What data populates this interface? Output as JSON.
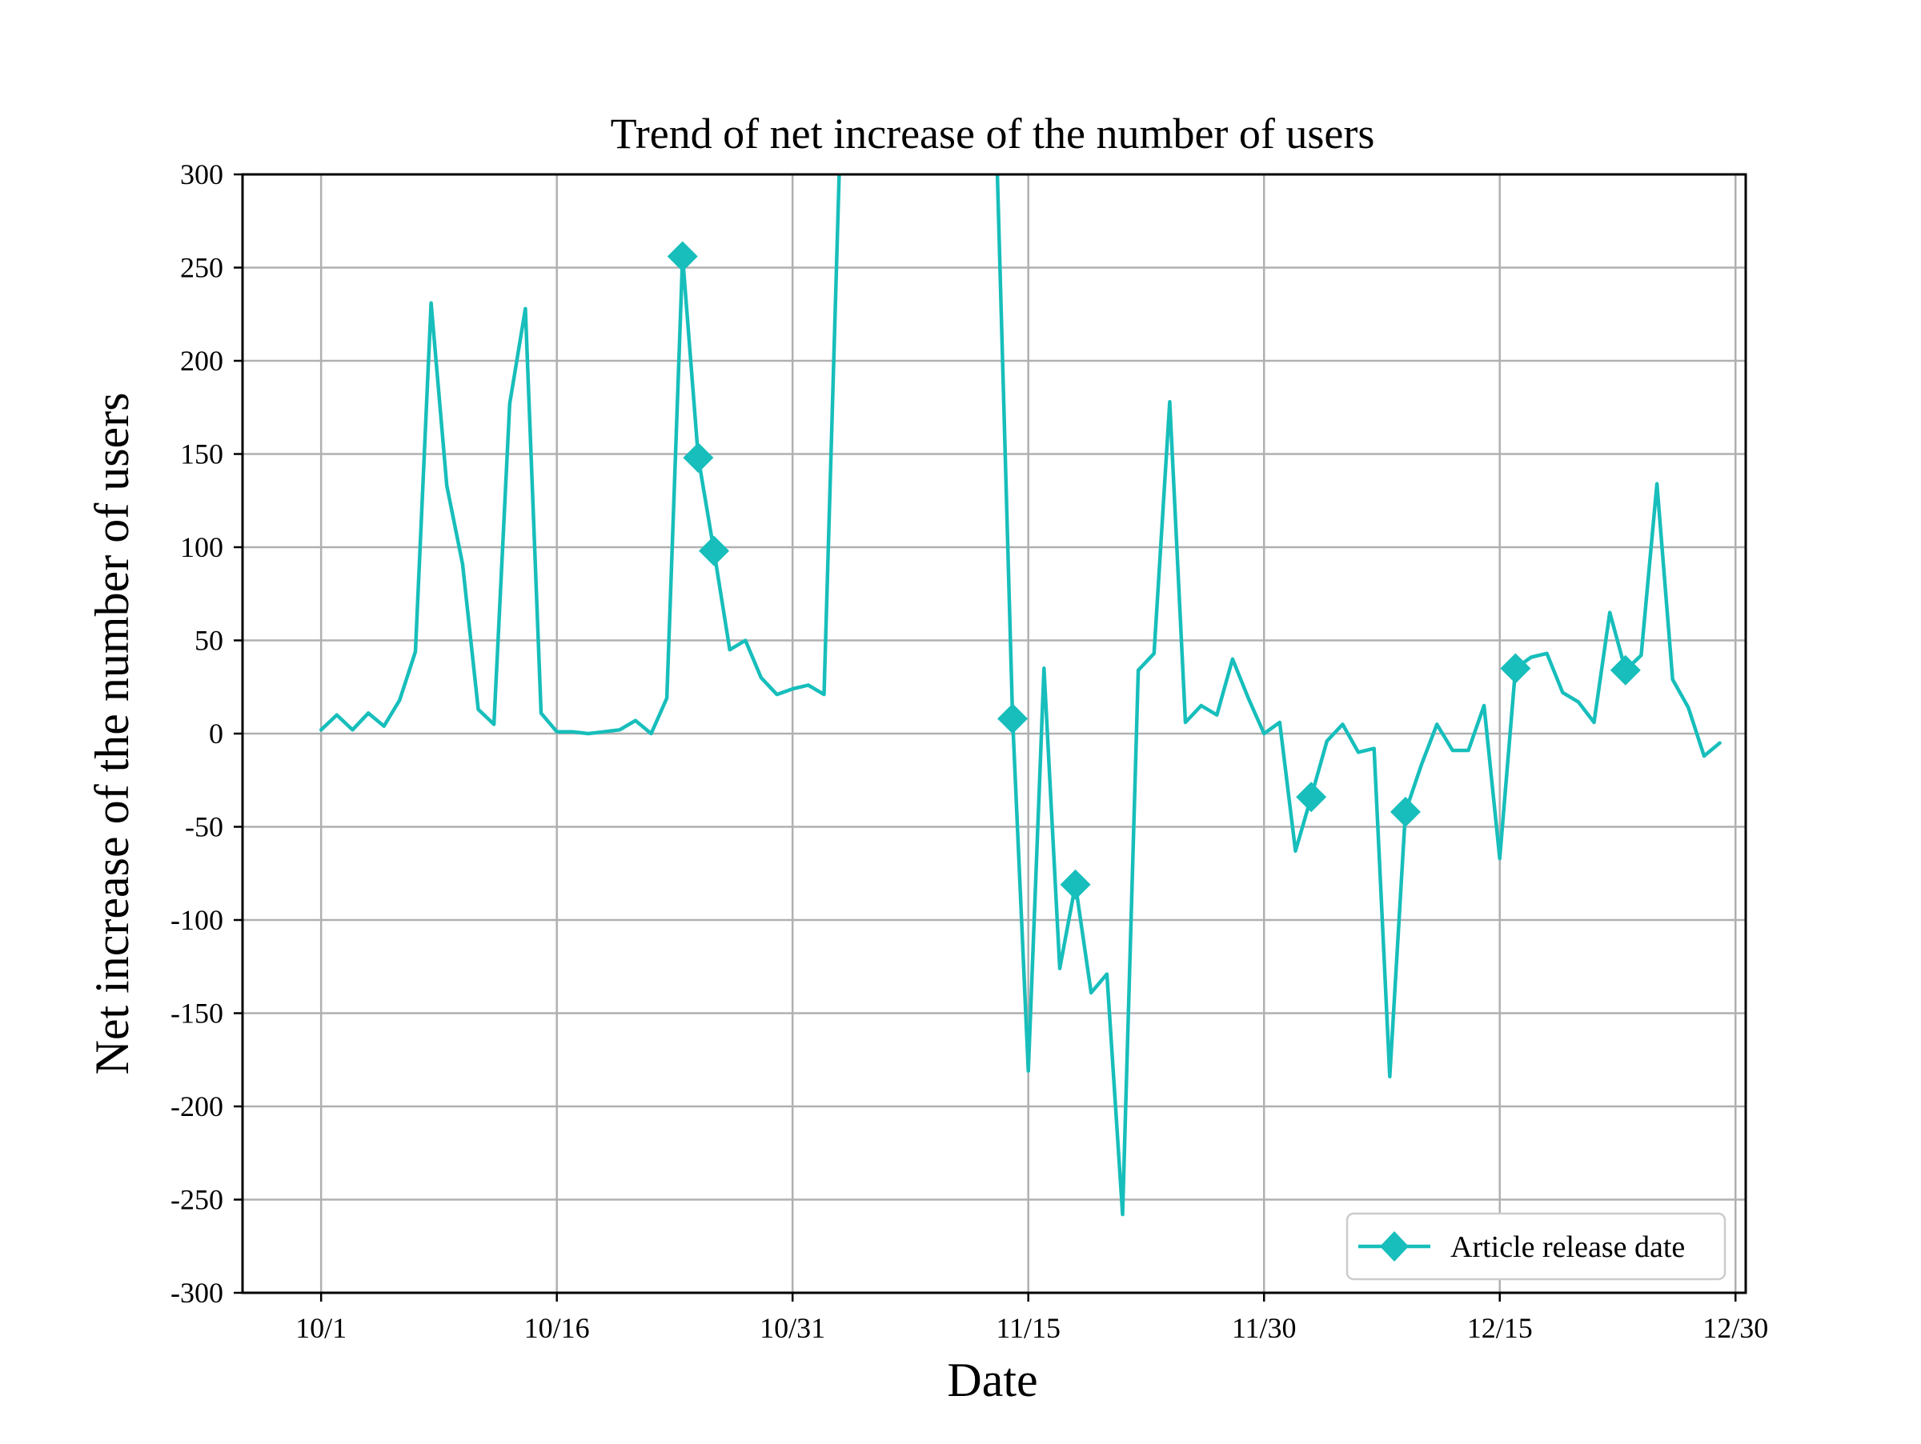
{
  "chart_data": {
    "type": "line",
    "title": "Trend of net increase of the number of users",
    "xlabel": "Date",
    "ylabel": "Net increase of the number of users",
    "ylim": [
      -300,
      300
    ],
    "xlim": [
      "9/26",
      "12/30"
    ],
    "grid": true,
    "legend_position": "lower-right",
    "x_ticks": [
      "10/1",
      "10/16",
      "10/31",
      "11/15",
      "11/30",
      "12/15",
      "12/30"
    ],
    "y_ticks": [
      300,
      250,
      200,
      150,
      100,
      50,
      0,
      -50,
      -100,
      -150,
      -200,
      -250,
      -300
    ],
    "colors": {
      "series": "#17bebb",
      "grid": "#b0b0b0",
      "axis": "#000000"
    },
    "series": [
      {
        "name": "Article release date",
        "marker": "diamond",
        "x": [
          "10/1",
          "10/2",
          "10/3",
          "10/4",
          "10/5",
          "10/6",
          "10/7",
          "10/8",
          "10/9",
          "10/10",
          "10/11",
          "10/12",
          "10/13",
          "10/14",
          "10/15",
          "10/16",
          "10/17",
          "10/18",
          "10/19",
          "10/20",
          "10/21",
          "10/22",
          "10/23",
          "10/24",
          "10/25",
          "10/26",
          "10/27",
          "10/28",
          "10/29",
          "10/30",
          "10/31",
          "11/1",
          "11/2",
          "11/3",
          "11/4",
          "11/5",
          "11/6",
          "11/7",
          "11/8",
          "11/9",
          "11/10",
          "11/11",
          "11/12",
          "11/13",
          "11/14",
          "11/15",
          "11/16",
          "11/17",
          "11/18",
          "11/19",
          "11/20",
          "11/21",
          "11/22",
          "11/23",
          "11/24",
          "11/25",
          "11/26",
          "11/27",
          "11/28",
          "11/29",
          "11/30",
          "12/1",
          "12/2",
          "12/3",
          "12/4",
          "12/5",
          "12/6",
          "12/7",
          "12/8",
          "12/9",
          "12/10",
          "12/11",
          "12/12",
          "12/13",
          "12/14",
          "12/15",
          "12/16",
          "12/17",
          "12/18",
          "12/19",
          "12/20",
          "12/21",
          "12/22",
          "12/23",
          "12/24",
          "12/25",
          "12/26",
          "12/27",
          "12/28",
          "12/29"
        ],
        "values": [
          2,
          10,
          2,
          11,
          4,
          18,
          44,
          231,
          133,
          91,
          13,
          5,
          177,
          228,
          11,
          1,
          1,
          0,
          1,
          2,
          7,
          0,
          19,
          256,
          148,
          98,
          45,
          50,
          30,
          21,
          24,
          26,
          21,
          310,
          null,
          null,
          null,
          null,
          null,
          null,
          null,
          null,
          null,
          310,
          8,
          -181,
          35,
          -126,
          -81,
          -139,
          -129,
          -258,
          34,
          43,
          178,
          6,
          15,
          10,
          40,
          19,
          0,
          6,
          -63,
          -34,
          -4,
          5,
          -10,
          -8,
          -184,
          -42,
          -17,
          5,
          -9,
          -9,
          15,
          -67,
          35,
          41,
          43,
          22,
          17,
          6,
          65,
          34,
          42,
          134,
          29,
          14,
          -12,
          -5
        ],
        "markers_at": [
          "10/24",
          "10/25",
          "10/26",
          "11/14",
          "11/18",
          "12/3",
          "12/9",
          "12/16",
          "12/23"
        ]
      }
    ]
  }
}
